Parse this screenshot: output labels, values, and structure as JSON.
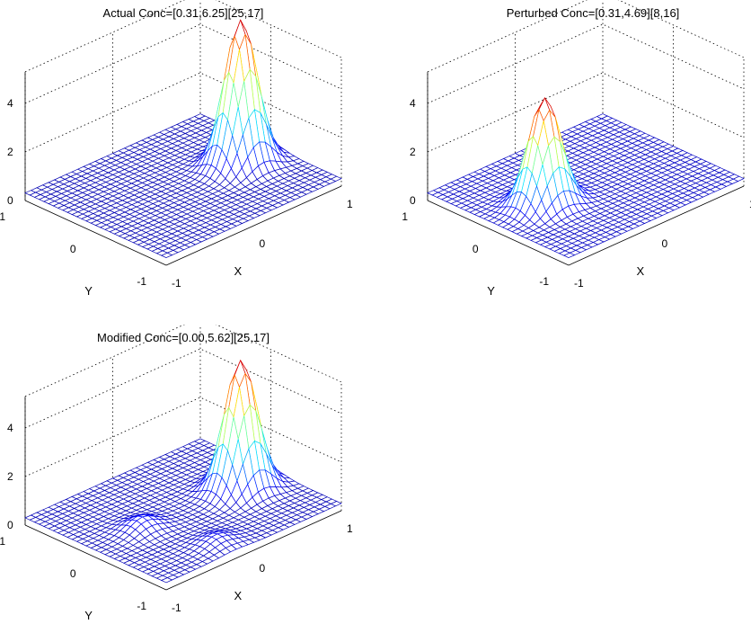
{
  "chart_data": [
    {
      "type": "surface",
      "title": "Actual Conc=[0.31,6.25][25,17]",
      "xlabel": "X",
      "ylabel": "Y",
      "xlim": [
        -1,
        1
      ],
      "ylim": [
        -1,
        1
      ],
      "zlim": [
        0,
        4
      ],
      "zticks": [
        "0",
        "2",
        "4"
      ],
      "xticks": [
        "-1",
        "0",
        "1"
      ],
      "yticks": [
        "-1",
        "0",
        "1"
      ],
      "grid_size": 31,
      "baseline": 0.31,
      "peaks": [
        {
          "x": 0.6,
          "y": -0.07,
          "height": 5.94,
          "width": 0.15
        }
      ],
      "max_value": 6.25
    },
    {
      "type": "surface",
      "title": "Perturbed Conc=[0.31,4.69][8,16]",
      "xlabel": "X",
      "ylabel": "Y",
      "xlim": [
        -1,
        1
      ],
      "ylim": [
        -1,
        1
      ],
      "zlim": [
        0,
        4
      ],
      "zticks": [
        "0",
        "2",
        "4"
      ],
      "xticks": [
        "-1",
        "0",
        "1"
      ],
      "yticks": [
        "-1",
        "0",
        "1"
      ],
      "grid_size": 31,
      "baseline": 0.31,
      "peaks": [
        {
          "x": -0.47,
          "y": 0.0,
          "height": 4.38,
          "width": 0.15
        }
      ],
      "max_value": 4.69
    },
    {
      "type": "surface",
      "title": "Modified Conc=[0.00,5.62][25,17]",
      "xlabel": "X",
      "ylabel": "Y",
      "xlim": [
        -1,
        1
      ],
      "ylim": [
        -1,
        1
      ],
      "zlim": [
        0,
        4
      ],
      "zticks": [
        "0",
        "2",
        "4"
      ],
      "xticks": [
        "-1",
        "0",
        "1"
      ],
      "yticks": [
        "-1",
        "0",
        "1"
      ],
      "grid_size": 31,
      "baseline": 0.3,
      "peaks": [
        {
          "x": 0.6,
          "y": -0.07,
          "height": 5.3,
          "width": 0.15
        },
        {
          "x": -0.47,
          "y": 0.0,
          "height": 0.5,
          "width": 0.14
        },
        {
          "x": -0.22,
          "y": -0.75,
          "height": 0.35,
          "width": 0.14
        }
      ],
      "max_value": 5.62
    }
  ]
}
